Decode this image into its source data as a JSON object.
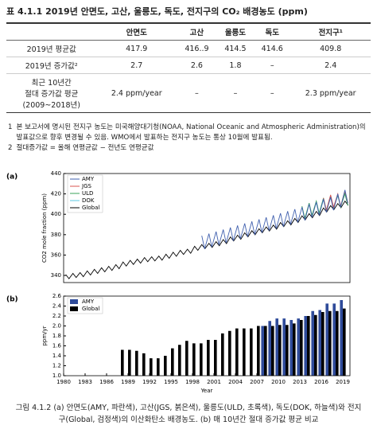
{
  "table_title": "표 4.1.1 2019년 안면도, 고산, 울릉도, 독도, 전지구의 CO₂ 배경농도 (ppm)",
  "table": {
    "header": [
      "안면도",
      "고산",
      "울릉도",
      "독도",
      "전지구¹"
    ],
    "rows": [
      [
        "2019년 평균값",
        "417.9",
        "416..9",
        "414.5",
        "414.6",
        "409.8"
      ],
      [
        "2019년 증가값²",
        "2.7",
        "2.6",
        "1.8",
        "–",
        "2.4"
      ],
      [
        "최근 10년간\n절대 증가값 평균\n(2009~2018년)",
        "2.4 ppm/year",
        "–",
        "–",
        "–",
        "2.3 ppm/year"
      ]
    ]
  },
  "footnotes": [
    {
      "mark": "1",
      "text": "본 보고서에 명시된 전지구 농도는 미국해양대기청(NOAA, National Oceanic and Atmospheric Administration)의 발표값으로 향후 변경될 수 있음. WMO에서 발표하는 전지구 농도는 통상 10월에 발표됨."
    },
    {
      "mark": "2",
      "text": "절대증가값 = 올해 연평균값 − 전년도 연평균값"
    }
  ],
  "chart_data": [
    {
      "type": "line",
      "panel_label": "(a)",
      "ylabel": "CO2 mole fraction (ppm)",
      "xlim": [
        1980,
        2020
      ],
      "ylim": [
        333,
        440
      ],
      "yticks": [
        340,
        360,
        380,
        400,
        420,
        440
      ],
      "legend": "upper left",
      "series": [
        {
          "name": "AMY",
          "color": "#3f5fae",
          "x": [
            1999.3,
            1999.7,
            2000.3,
            2000.7,
            2001.3,
            2001.7,
            2002.3,
            2002.7,
            2003.3,
            2003.7,
            2004.3,
            2004.7,
            2005.3,
            2005.7,
            2006.3,
            2006.7,
            2007.3,
            2007.7,
            2008.3,
            2008.7,
            2009.3,
            2009.7,
            2010.3,
            2010.7,
            2011.3,
            2011.7,
            2012.3,
            2012.7,
            2013.3,
            2013.7,
            2014.3,
            2014.7,
            2015.3,
            2015.7,
            2016.3,
            2016.7,
            2017.3,
            2017.7,
            2018.3,
            2018.7,
            2019.3,
            2019.7
          ],
          "values": [
            379,
            366,
            381,
            368,
            383,
            370,
            385,
            372,
            387,
            374,
            389,
            376,
            391,
            378,
            393,
            380,
            395,
            382,
            397,
            384,
            399,
            386,
            401,
            388,
            403,
            390,
            405,
            392,
            407,
            394,
            410,
            397,
            412,
            399,
            415,
            402,
            417,
            404,
            420,
            407,
            423.9,
            410.9
          ]
        },
        {
          "name": "JGS",
          "color": "#d9534f",
          "x": [
            2016.3,
            2016.7,
            2017.3,
            2017.7,
            2018.3,
            2018.7,
            2019.3,
            2019.7
          ],
          "values": [
            416,
            404,
            419,
            407,
            420,
            408,
            423,
            411
          ]
        },
        {
          "name": "ULD",
          "color": "#3aa35a",
          "x": [
            2013.3,
            2013.7,
            2014.3,
            2014.7,
            2015.3,
            2015.7,
            2016.3,
            2016.7,
            2017.3,
            2017.7,
            2018.3,
            2018.7,
            2019.3,
            2019.7
          ],
          "values": [
            408,
            396,
            411,
            399,
            413,
            401,
            416,
            404,
            418,
            406,
            419,
            407,
            420.5,
            408.5
          ]
        },
        {
          "name": "DOK",
          "color": "#5bc8e0",
          "x": [
            2015.3,
            2015.7,
            2016.3,
            2016.7,
            2017.3,
            2017.7,
            2018.3,
            2018.7,
            2019.3,
            2019.7
          ],
          "values": [
            411,
            401,
            414,
            404,
            416,
            406,
            418,
            408,
            419.6,
            409.6
          ]
        },
        {
          "name": "Global",
          "color": "#000000",
          "x": [
            1980.3,
            1980.75,
            1981.3,
            1981.75,
            1982.3,
            1982.75,
            1983.3,
            1983.75,
            1984.3,
            1984.75,
            1985.3,
            1985.75,
            1986.3,
            1986.75,
            1987.3,
            1987.75,
            1988.3,
            1988.75,
            1989.3,
            1989.75,
            1990.3,
            1990.75,
            1991.3,
            1991.75,
            1992.3,
            1992.75,
            1993.3,
            1993.75,
            1994.3,
            1994.75,
            1995.3,
            1995.75,
            1996.3,
            1996.75,
            1997.3,
            1997.75,
            1998.3,
            1998.75,
            1999.3,
            1999.75,
            2000.3,
            2000.75,
            2001.3,
            2001.75,
            2002.3,
            2002.75,
            2003.3,
            2003.75,
            2004.3,
            2004.75,
            2005.3,
            2005.75,
            2006.3,
            2006.75,
            2007.3,
            2007.75,
            2008.3,
            2008.75,
            2009.3,
            2009.75,
            2010.3,
            2010.75,
            2011.3,
            2011.75,
            2012.3,
            2012.75,
            2013.3,
            2013.75,
            2014.3,
            2014.75,
            2015.3,
            2015.75,
            2016.3,
            2016.75,
            2017.3,
            2017.75,
            2018.3,
            2018.75,
            2019.3,
            2019.75
          ],
          "values": [
            340.8,
            336.8,
            342.0,
            338.0,
            342.8,
            338.8,
            344.4,
            340.4,
            346.0,
            342.0,
            347.5,
            343.5,
            348.9,
            344.9,
            350.6,
            346.6,
            353.2,
            349.2,
            354.8,
            350.8,
            356.0,
            352.0,
            357.5,
            353.5,
            358.3,
            354.3,
            359.0,
            355.0,
            360.8,
            356.8,
            362.8,
            358.8,
            364.6,
            360.6,
            365.7,
            361.7,
            368.6,
            364.6,
            370.3,
            366.3,
            371.5,
            367.5,
            373.1,
            369.1,
            375.2,
            371.2,
            377.8,
            373.8,
            379.5,
            375.5,
            381.8,
            377.8,
            383.9,
            379.9,
            385.8,
            381.8,
            387.6,
            383.6,
            389.4,
            385.4,
            391.9,
            387.9,
            393.6,
            389.6,
            395.9,
            391.9,
            398.5,
            394.5,
            400.6,
            396.6,
            402.8,
            398.8,
            406.2,
            402.2,
            408.5,
            404.5,
            410.5,
            406.5,
            412.9,
            408.9
          ]
        }
      ]
    },
    {
      "type": "bar",
      "panel_label": "(b)",
      "ylabel": "ppm/yr",
      "xlabel": "Year",
      "xlim": [
        1980,
        2020
      ],
      "xticks": [
        1980,
        1983,
        1986,
        1989,
        1992,
        1995,
        1998,
        2001,
        2004,
        2007,
        2010,
        2013,
        2016,
        2019
      ],
      "ylim": [
        1.0,
        2.6
      ],
      "yticks": [
        {
          "value": 1.0,
          "label": "1.0"
        },
        1.2,
        1.4,
        1.6,
        1.8,
        {
          "value": 2.0,
          "label": "2.0"
        },
        2.2,
        2.4,
        2.6
      ],
      "legend": "upper left",
      "series": [
        {
          "name": "AMY",
          "color": "#2f4b9a",
          "x": [
            2008,
            2009,
            2010,
            2011,
            2012,
            2013,
            2014,
            2015,
            2016,
            2017,
            2018,
            2019
          ],
          "values": [
            2.0,
            2.1,
            2.15,
            2.15,
            2.12,
            2.15,
            2.2,
            2.3,
            2.32,
            2.45,
            2.45,
            2.52
          ]
        },
        {
          "name": "Global",
          "color": "#000000",
          "x": [
            1988,
            1989,
            1990,
            1991,
            1992,
            1993,
            1994,
            1995,
            1996,
            1997,
            1998,
            1999,
            2000,
            2001,
            2002,
            2003,
            2004,
            2005,
            2006,
            2007,
            2008,
            2009,
            2010,
            2011,
            2012,
            2013,
            2014,
            2015,
            2016,
            2017,
            2018,
            2019
          ],
          "values": [
            1.52,
            1.52,
            1.5,
            1.45,
            1.35,
            1.35,
            1.4,
            1.55,
            1.62,
            1.7,
            1.65,
            1.65,
            1.72,
            1.72,
            1.85,
            1.9,
            1.95,
            1.95,
            1.95,
            2.0,
            2.0,
            2.0,
            2.02,
            2.02,
            2.05,
            2.12,
            2.2,
            2.22,
            2.28,
            2.3,
            2.3,
            2.35
          ]
        }
      ]
    }
  ],
  "caption": "그림 4.1.2 (a) 안면도(AMY, 파란색), 고산(JGS, 붉은색), 울릉도(ULD, 초록색), 독도(DOK, 하늘색)와 전지구(Global, 검정색)의 이산화탄소 배경농도. (b) 매 10년간 절대 증가값 평균 비교"
}
